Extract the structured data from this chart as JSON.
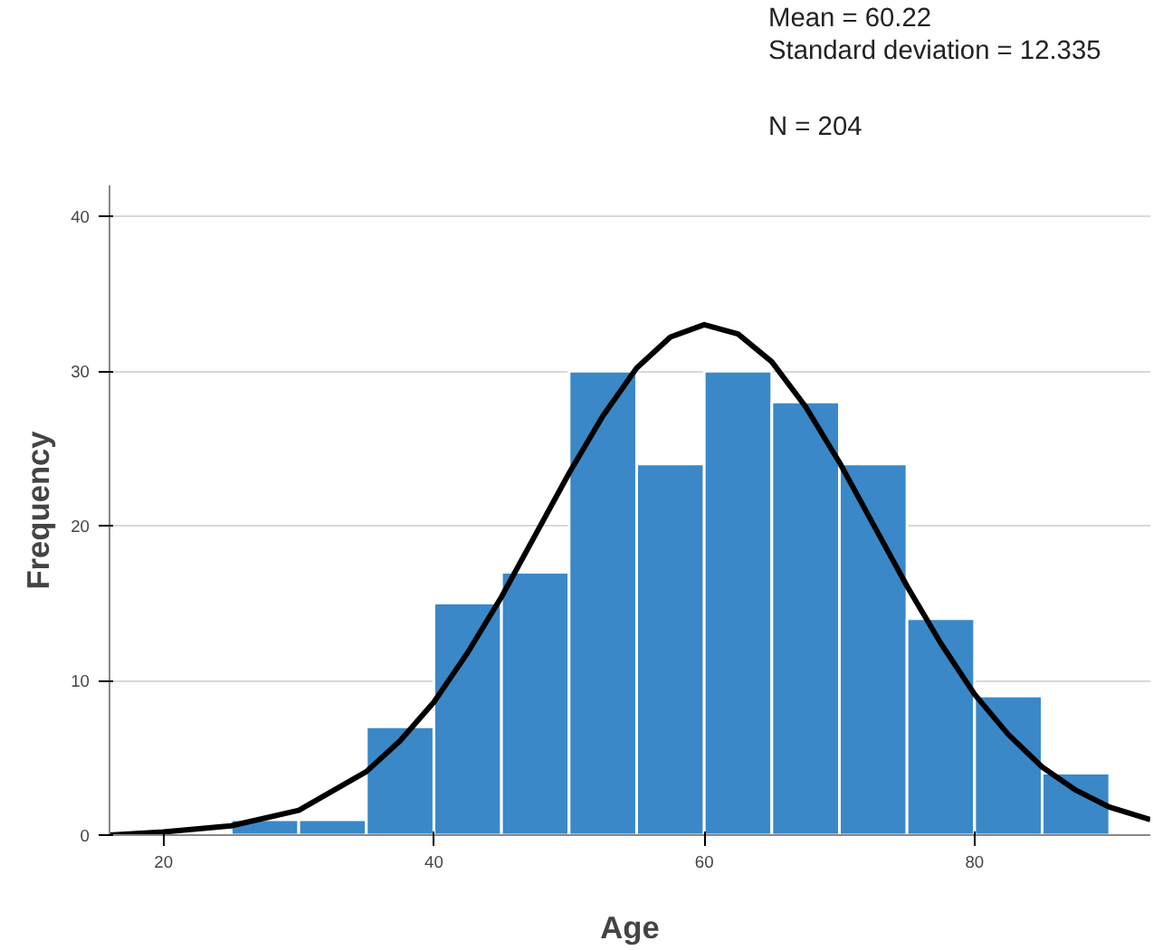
{
  "chart_data": {
    "type": "histogram",
    "xlabel": "Age",
    "ylabel": "Frequency",
    "annotations": [
      "Mean = 60.22",
      "Standard deviation = 12.335",
      "N = 204"
    ],
    "bins": [
      25,
      30,
      35,
      40,
      45,
      50,
      55,
      60,
      65,
      70,
      75,
      80,
      85,
      90
    ],
    "values": [
      1,
      1,
      7,
      15,
      17,
      30,
      24,
      30,
      28,
      24,
      14,
      9,
      4
    ],
    "color": "#3a88c8",
    "series": [
      {
        "type": "line",
        "color": "#000000",
        "x": [
          16,
          20,
          25,
          30,
          35,
          37.5,
          40,
          42.5,
          45,
          47.5,
          50,
          52.5,
          55,
          57.5,
          60,
          62.5,
          65,
          67.5,
          70,
          72.5,
          75,
          77.5,
          80,
          82.5,
          85,
          87.5,
          90,
          93
        ],
        "values": [
          0,
          0.2,
          0.6,
          1.6,
          4.1,
          6.1,
          8.6,
          11.8,
          15.4,
          19.4,
          23.4,
          27.1,
          30.2,
          32.2,
          33.0,
          32.4,
          30.6,
          27.7,
          24.1,
          20.1,
          16.1,
          12.4,
          9.1,
          6.5,
          4.4,
          2.9,
          1.8,
          1
        ]
      }
    ],
    "xlim": [
      16,
      93
    ],
    "ylim": [
      0,
      42
    ],
    "xticks": [
      20,
      40,
      60,
      80
    ],
    "yticks": [
      0,
      10,
      20,
      30,
      40
    ],
    "grid": "y"
  }
}
